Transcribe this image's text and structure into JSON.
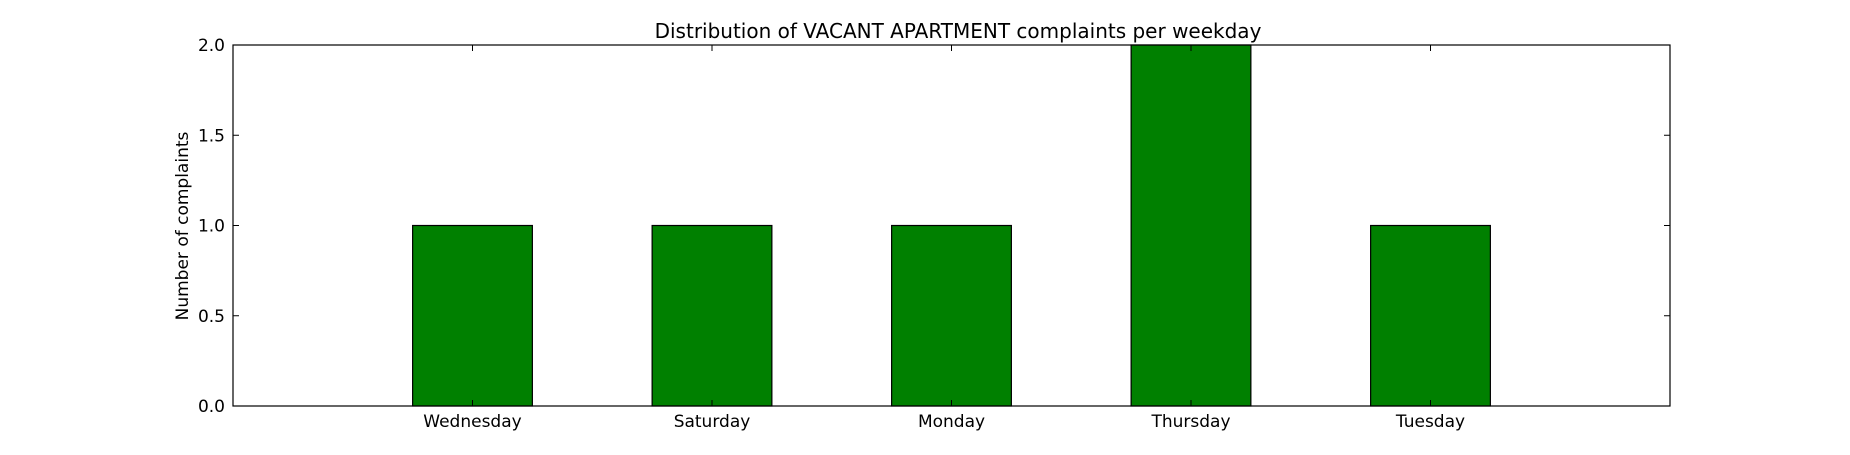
{
  "chart_data": {
    "type": "bar",
    "title": "Distribution of  VACANT APARTMENT complaints per weekday",
    "xlabel": "",
    "ylabel": "Number of complaints",
    "categories": [
      "Wednesday",
      "Saturday",
      "Monday",
      "Thursday",
      "Tuesday"
    ],
    "values": [
      1,
      1,
      1,
      2,
      1
    ],
    "ylim": [
      0,
      2.0
    ],
    "xlim": [
      -1,
      5
    ],
    "yticks": [
      "0.0",
      "0.5",
      "1.0",
      "1.5",
      "2.0"
    ],
    "bar_color": "#008000",
    "grid": false,
    "legend": "none"
  }
}
